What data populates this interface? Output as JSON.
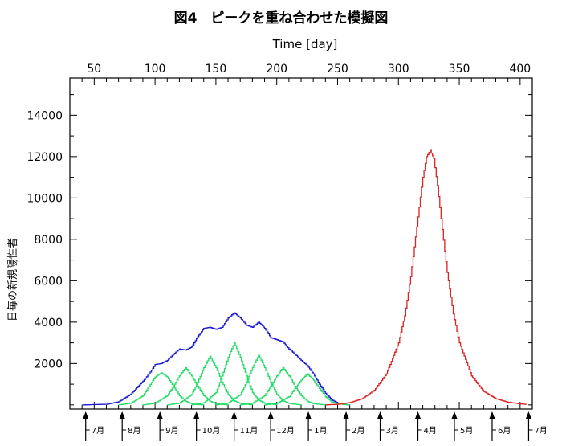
{
  "chart_data": {
    "type": "line",
    "title": "図4　ピークを重ね合わせた模擬図",
    "xlabel": "Time [day]",
    "ylabel": "日毎の新規陽性者",
    "xlim": [
      30,
      410
    ],
    "ylim": [
      -200,
      15800
    ],
    "x_ticks": [
      50,
      100,
      150,
      200,
      250,
      300,
      350,
      400
    ],
    "y_ticks": [
      2000,
      4000,
      6000,
      8000,
      10000,
      12000,
      14000
    ],
    "grid": false,
    "series": [
      {
        "color": "#1c1cd6",
        "style": "step",
        "x": [
          40,
          60,
          70,
          80,
          90,
          95,
          100,
          105,
          110,
          115,
          120,
          125,
          130,
          135,
          140,
          145,
          150,
          155,
          160,
          165,
          170,
          175,
          180,
          185,
          190,
          195,
          200,
          205,
          210,
          215,
          220,
          225,
          230,
          235,
          240,
          245,
          250,
          255,
          260
        ],
        "y": [
          0,
          30,
          150,
          520,
          1150,
          1500,
          1950,
          2000,
          2150,
          2450,
          2700,
          2650,
          2800,
          3300,
          3700,
          3750,
          3650,
          3750,
          4200,
          4450,
          4200,
          3850,
          3750,
          4000,
          3700,
          3250,
          3150,
          3050,
          2700,
          2450,
          2150,
          1900,
          1500,
          1000,
          560,
          250,
          90,
          20,
          0
        ]
      },
      {
        "color": "#22dd66",
        "style": "step",
        "x": [
          70,
          80,
          90,
          95,
          100,
          105,
          110,
          115,
          120,
          125,
          130,
          135,
          140
        ],
        "y": [
          0,
          80,
          450,
          900,
          1350,
          1550,
          1350,
          900,
          450,
          180,
          60,
          15,
          0
        ]
      },
      {
        "color": "#22dd66",
        "style": "step",
        "x": [
          90,
          100,
          110,
          115,
          120,
          125,
          130,
          135,
          140,
          145,
          150,
          160
        ],
        "y": [
          0,
          80,
          450,
          900,
          1400,
          1800,
          1400,
          900,
          450,
          180,
          60,
          0
        ]
      },
      {
        "color": "#22dd66",
        "style": "step",
        "x": [
          110,
          120,
          130,
          135,
          140,
          145,
          150,
          155,
          160,
          165,
          170,
          180
        ],
        "y": [
          0,
          80,
          500,
          1100,
          1800,
          2350,
          1800,
          1100,
          500,
          200,
          70,
          0
        ]
      },
      {
        "color": "#22dd66",
        "style": "step",
        "x": [
          130,
          140,
          150,
          155,
          160,
          165,
          170,
          175,
          180,
          185,
          190,
          200
        ],
        "y": [
          0,
          100,
          600,
          1400,
          2300,
          3000,
          2300,
          1400,
          600,
          230,
          80,
          0
        ]
      },
      {
        "color": "#22dd66",
        "style": "step",
        "x": [
          150,
          160,
          170,
          175,
          180,
          185,
          190,
          195,
          200,
          205,
          210,
          220
        ],
        "y": [
          0,
          90,
          500,
          1100,
          1800,
          2400,
          1800,
          1100,
          500,
          200,
          70,
          0
        ]
      },
      {
        "color": "#22dd66",
        "style": "step",
        "x": [
          170,
          180,
          190,
          195,
          200,
          205,
          210,
          215,
          220,
          225,
          230,
          240
        ],
        "y": [
          0,
          80,
          450,
          900,
          1400,
          1800,
          1400,
          900,
          450,
          180,
          60,
          0
        ]
      },
      {
        "color": "#22dd66",
        "style": "step",
        "x": [
          190,
          200,
          210,
          215,
          220,
          225,
          230,
          235,
          240,
          245,
          250,
          260
        ],
        "y": [
          0,
          70,
          400,
          800,
          1200,
          1500,
          1200,
          800,
          400,
          150,
          50,
          0
        ]
      },
      {
        "color": "#dd2222",
        "style": "step",
        "x": [
          240,
          250,
          260,
          270,
          280,
          290,
          300,
          305,
          310,
          315,
          320,
          323,
          326,
          329,
          332,
          335,
          340,
          345,
          350,
          360,
          370,
          380,
          390,
          400,
          405
        ],
        "y": [
          0,
          30,
          110,
          300,
          700,
          1500,
          3000,
          4300,
          6200,
          8600,
          11000,
          12000,
          12300,
          11900,
          10600,
          9000,
          6400,
          4400,
          3000,
          1400,
          650,
          300,
          130,
          50,
          20
        ]
      }
    ],
    "annotations": [
      {
        "x": 43,
        "label": "7月"
      },
      {
        "x": 73,
        "label": "8月"
      },
      {
        "x": 104,
        "label": "9月"
      },
      {
        "x": 134,
        "label": "10月"
      },
      {
        "x": 165,
        "label": "11月"
      },
      {
        "x": 195,
        "label": "12月"
      },
      {
        "x": 226,
        "label": "1月"
      },
      {
        "x": 257,
        "label": "2月"
      },
      {
        "x": 285,
        "label": "3月"
      },
      {
        "x": 316,
        "label": "4月"
      },
      {
        "x": 346,
        "label": "5月"
      },
      {
        "x": 377,
        "label": "6月"
      },
      {
        "x": 407,
        "label": "7月"
      }
    ]
  }
}
